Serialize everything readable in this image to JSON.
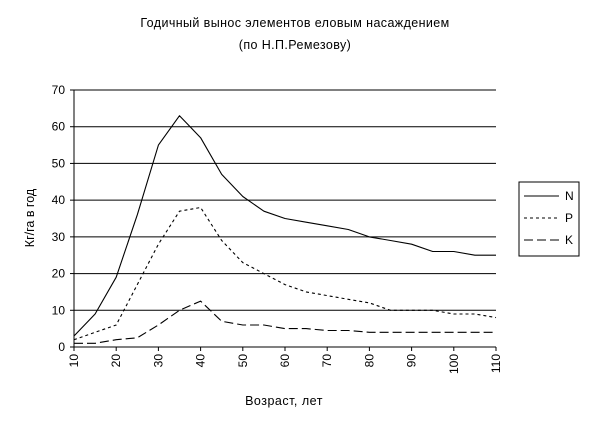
{
  "chart_data": {
    "type": "line",
    "title": "Годичный вынос элементов еловым насаждением",
    "subtitle": "(по Н.П.Ремезову)",
    "xlabel": "Возраст, лет",
    "ylabel": "Кг/га в год",
    "xlim": [
      10,
      110
    ],
    "ylim": [
      0,
      70
    ],
    "x_ticks": [
      "10",
      "20",
      "30",
      "40",
      "50",
      "60",
      "70",
      "80",
      "90",
      "100",
      "110"
    ],
    "y_ticks": [
      "0",
      "10",
      "20",
      "30",
      "40",
      "50",
      "60",
      "70"
    ],
    "grid": "horizontal",
    "legend_position": "right",
    "series": [
      {
        "name": "N",
        "dash": "solid",
        "color": "#000000",
        "x": [
          10,
          15,
          20,
          25,
          30,
          35,
          40,
          45,
          50,
          55,
          60,
          65,
          70,
          75,
          80,
          85,
          90,
          95,
          100,
          105,
          110
        ],
        "y": [
          3,
          9,
          19,
          36,
          55,
          63,
          57,
          47,
          41,
          37,
          35,
          34,
          33,
          32,
          30,
          29,
          28,
          26,
          26,
          25,
          25
        ]
      },
      {
        "name": "P",
        "dash": "short",
        "color": "#000000",
        "x": [
          10,
          15,
          20,
          25,
          30,
          35,
          40,
          45,
          50,
          55,
          60,
          65,
          70,
          75,
          80,
          85,
          90,
          95,
          100,
          105,
          110
        ],
        "y": [
          2,
          4,
          6,
          17,
          28,
          37,
          38,
          29,
          23,
          20,
          17,
          15,
          14,
          13,
          12,
          10,
          10,
          10,
          9,
          9,
          8
        ]
      },
      {
        "name": "K",
        "dash": "long",
        "color": "#000000",
        "x": [
          10,
          15,
          20,
          25,
          30,
          35,
          40,
          45,
          50,
          55,
          60,
          65,
          70,
          75,
          80,
          85,
          90,
          95,
          100,
          105,
          110
        ],
        "y": [
          1,
          1,
          2,
          2.5,
          6,
          10,
          12.5,
          7,
          6,
          6,
          5,
          5,
          4.5,
          4.5,
          4,
          4,
          4,
          4,
          4,
          4,
          4
        ]
      }
    ]
  }
}
